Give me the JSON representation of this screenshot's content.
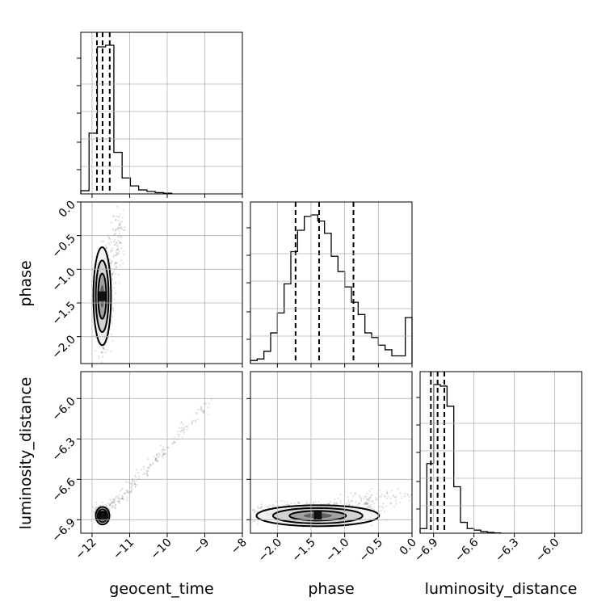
{
  "chart_data": {
    "type": "corner",
    "parameters": [
      "geocent_time",
      "phase",
      "luminosity_distance"
    ],
    "axes": {
      "geocent_time": {
        "range": [
          -12.3,
          -8.0
        ],
        "ticks": [
          -12,
          -11,
          -10,
          -9,
          -8
        ],
        "tick_labels": [
          "−12",
          "−11",
          "−10",
          "−9",
          "−8"
        ]
      },
      "phase": {
        "range": [
          -2.4,
          0.0
        ],
        "ticks": [
          -2.0,
          -1.5,
          -1.0,
          -0.5,
          0.0
        ],
        "tick_labels": [
          "−2.0",
          "−1.5",
          "−1.0",
          "−0.5",
          "0.0"
        ]
      },
      "luminosity_distance": {
        "range": [
          -7.0,
          -5.8
        ],
        "ticks": [
          -6.9,
          -6.6,
          -6.3,
          -6.0
        ],
        "tick_labels": [
          "−6.9",
          "−6.6",
          "−6.3",
          "−6.0"
        ]
      }
    },
    "histograms": {
      "geocent_time": {
        "bin_edges": [
          -12.3,
          -12.08,
          -11.86,
          -11.64,
          -11.42,
          -11.2,
          -10.98,
          -10.76,
          -10.54,
          -10.32,
          -10.1,
          -9.88
        ],
        "counts": [
          0.02,
          0.38,
          0.92,
          0.93,
          0.26,
          0.1,
          0.05,
          0.025,
          0.015,
          0.008,
          0.004,
          0.002
        ],
        "quantiles": [
          -11.87,
          -11.72,
          -11.53
        ]
      },
      "phase": {
        "bin_edges": [
          -2.4,
          -2.3,
          -2.2,
          -2.1,
          -2.0,
          -1.9,
          -1.8,
          -1.7,
          -1.6,
          -1.5,
          -1.4,
          -1.3,
          -1.2,
          -1.1,
          -1.0,
          -0.9,
          -0.8,
          -0.7,
          -0.6,
          -0.5,
          -0.4,
          -0.3,
          -0.2,
          -0.1,
          0.0
        ],
        "counts": [
          0.02,
          0.03,
          0.08,
          0.2,
          0.33,
          0.52,
          0.73,
          0.87,
          0.96,
          0.97,
          0.93,
          0.85,
          0.7,
          0.6,
          0.5,
          0.4,
          0.32,
          0.2,
          0.17,
          0.12,
          0.09,
          0.05,
          0.05,
          0.3
        ],
        "quantiles": [
          -1.73,
          -1.38,
          -0.87
        ]
      },
      "luminosity_distance": {
        "bin_edges": [
          -7.0,
          -6.95,
          -6.9,
          -6.85,
          -6.8,
          -6.75,
          -6.7,
          -6.65,
          -6.6,
          -6.55,
          -6.5,
          -6.45,
          -6.4
        ],
        "counts": [
          0.03,
          0.45,
          0.96,
          0.95,
          0.82,
          0.3,
          0.07,
          0.03,
          0.02,
          0.01,
          0.005,
          0.002
        ],
        "quantiles": [
          -6.92,
          -6.87,
          -6.82
        ]
      }
    },
    "scatter_2d": {
      "phase_vs_geocent_time": {
        "x_center": -11.7,
        "y_center": -1.5,
        "peak": [
          -11.73,
          -1.4
        ],
        "tail_direction": [
          -11.2,
          -0.3
        ]
      },
      "luminosity_distance_vs_geocent_time": {
        "x_center": -11.75,
        "y_center": -6.86,
        "peak": [
          -11.72,
          -6.87
        ],
        "tail_direction": [
          -8.8,
          -6.0
        ]
      },
      "luminosity_distance_vs_phase": {
        "x_center": -1.5,
        "y_center": -6.85,
        "peak": [
          -1.4,
          -6.87
        ],
        "tail_direction": [
          -0.2,
          -6.7
        ]
      }
    },
    "grid": true
  }
}
